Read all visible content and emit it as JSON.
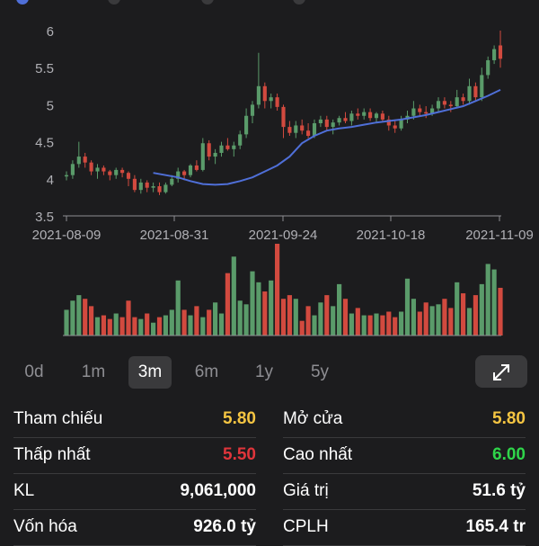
{
  "chart_data": {
    "type": "candlestick",
    "y_ticks": [
      "6",
      "5.5",
      "5",
      "4.5",
      "4",
      "3.5"
    ],
    "ylim": [
      3.5,
      6
    ],
    "x_ticks": [
      "2021-08-09",
      "2021-08-31",
      "2021-09-24",
      "2021-10-18",
      "2021-11-09"
    ],
    "candles": [
      [
        4.05,
        4.1,
        3.98,
        4.05
      ],
      [
        4.05,
        4.25,
        4.0,
        4.2
      ],
      [
        4.2,
        4.5,
        4.15,
        4.3
      ],
      [
        4.3,
        4.35,
        4.15,
        4.22
      ],
      [
        4.22,
        4.25,
        4.05,
        4.1
      ],
      [
        4.1,
        4.2,
        4.0,
        4.15
      ],
      [
        4.15,
        4.18,
        4.05,
        4.1
      ],
      [
        4.1,
        4.12,
        3.98,
        4.05
      ],
      [
        4.05,
        4.15,
        4.0,
        4.12
      ],
      [
        4.12,
        4.15,
        4.02,
        4.08
      ],
      [
        4.08,
        4.1,
        3.9,
        4.0
      ],
      [
        4.0,
        4.05,
        3.82,
        3.85
      ],
      [
        3.85,
        4.0,
        3.8,
        3.95
      ],
      [
        3.95,
        3.98,
        3.82,
        3.88
      ],
      [
        3.88,
        3.95,
        3.82,
        3.9
      ],
      [
        3.9,
        3.95,
        3.78,
        3.82
      ],
      [
        3.82,
        3.95,
        3.8,
        3.92
      ],
      [
        3.92,
        4.05,
        3.9,
        4.0
      ],
      [
        4.0,
        4.15,
        3.95,
        4.1
      ],
      [
        4.1,
        4.12,
        3.98,
        4.05
      ],
      [
        4.05,
        4.2,
        4.02,
        4.18
      ],
      [
        4.18,
        4.25,
        4.1,
        4.12
      ],
      [
        4.12,
        4.55,
        4.1,
        4.48
      ],
      [
        4.48,
        4.52,
        4.25,
        4.3
      ],
      [
        4.3,
        4.4,
        4.2,
        4.35
      ],
      [
        4.35,
        4.5,
        4.3,
        4.45
      ],
      [
        4.45,
        4.55,
        4.38,
        4.4
      ],
      [
        4.4,
        4.5,
        4.3,
        4.45
      ],
      [
        4.45,
        4.65,
        4.4,
        4.6
      ],
      [
        4.6,
        4.95,
        4.55,
        4.85
      ],
      [
        4.85,
        5.05,
        4.75,
        5.0
      ],
      [
        5.0,
        5.7,
        4.95,
        5.25
      ],
      [
        5.25,
        5.3,
        4.95,
        5.05
      ],
      [
        5.05,
        5.15,
        4.95,
        5.1
      ],
      [
        5.1,
        5.15,
        4.92,
        4.97
      ],
      [
        4.97,
        5.0,
        4.55,
        4.7
      ],
      [
        4.7,
        4.78,
        4.58,
        4.62
      ],
      [
        4.62,
        4.78,
        4.55,
        4.72
      ],
      [
        4.72,
        4.8,
        4.6,
        4.65
      ],
      [
        4.65,
        4.75,
        4.55,
        4.58
      ],
      [
        4.58,
        4.8,
        4.55,
        4.75
      ],
      [
        4.75,
        4.85,
        4.7,
        4.8
      ],
      [
        4.8,
        4.85,
        4.65,
        4.7
      ],
      [
        4.7,
        4.8,
        4.6,
        4.76
      ],
      [
        4.76,
        4.85,
        4.72,
        4.82
      ],
      [
        4.82,
        4.9,
        4.75,
        4.78
      ],
      [
        4.78,
        4.92,
        4.72,
        4.88
      ],
      [
        4.88,
        4.95,
        4.8,
        4.85
      ],
      [
        4.85,
        4.95,
        4.8,
        4.9
      ],
      [
        4.9,
        4.95,
        4.78,
        4.82
      ],
      [
        4.82,
        4.9,
        4.75,
        4.88
      ],
      [
        4.88,
        4.92,
        4.78,
        4.8
      ],
      [
        4.8,
        4.85,
        4.65,
        4.72
      ],
      [
        4.72,
        4.8,
        4.62,
        4.68
      ],
      [
        4.68,
        4.85,
        4.65,
        4.8
      ],
      [
        4.8,
        4.92,
        4.75,
        4.85
      ],
      [
        4.85,
        5.05,
        4.8,
        4.95
      ],
      [
        4.95,
        5.0,
        4.85,
        4.9
      ],
      [
        4.9,
        4.98,
        4.82,
        4.88
      ],
      [
        4.88,
        5.0,
        4.85,
        4.95
      ],
      [
        4.95,
        5.1,
        4.9,
        5.05
      ],
      [
        5.05,
        5.1,
        4.95,
        5.0
      ],
      [
        5.0,
        5.05,
        4.9,
        4.98
      ],
      [
        4.98,
        5.2,
        4.95,
        5.1
      ],
      [
        5.1,
        5.15,
        5.0,
        5.05
      ],
      [
        5.05,
        5.35,
        5.0,
        5.25
      ],
      [
        5.25,
        5.3,
        5.05,
        5.1
      ],
      [
        5.1,
        5.5,
        5.05,
        5.4
      ],
      [
        5.4,
        5.65,
        5.35,
        5.6
      ],
      [
        5.6,
        5.8,
        5.55,
        5.75
      ],
      [
        5.8,
        6.0,
        5.5,
        5.62
      ]
    ],
    "ma": [
      [
        14,
        4.08
      ],
      [
        16,
        4.05
      ],
      [
        18,
        4.02
      ],
      [
        20,
        3.97
      ],
      [
        22,
        3.93
      ],
      [
        24,
        3.92
      ],
      [
        26,
        3.93
      ],
      [
        28,
        3.97
      ],
      [
        30,
        4.02
      ],
      [
        32,
        4.1
      ],
      [
        34,
        4.18
      ],
      [
        36,
        4.3
      ],
      [
        38,
        4.48
      ],
      [
        40,
        4.58
      ],
      [
        42,
        4.65
      ],
      [
        44,
        4.68
      ],
      [
        46,
        4.7
      ],
      [
        48,
        4.73
      ],
      [
        50,
        4.76
      ],
      [
        52,
        4.78
      ],
      [
        54,
        4.8
      ],
      [
        56,
        4.83
      ],
      [
        58,
        4.86
      ],
      [
        60,
        4.9
      ],
      [
        62,
        4.94
      ],
      [
        64,
        4.98
      ],
      [
        66,
        5.05
      ],
      [
        68,
        5.12
      ],
      [
        70,
        5.2
      ]
    ],
    "volumes": [
      0.28,
      0.38,
      0.44,
      0.4,
      0.32,
      0.2,
      0.22,
      0.18,
      0.24,
      0.2,
      0.38,
      0.2,
      0.18,
      0.24,
      0.14,
      0.2,
      0.22,
      0.28,
      0.6,
      0.28,
      0.22,
      0.32,
      0.2,
      0.28,
      0.36,
      0.24,
      0.68,
      0.86,
      0.38,
      0.34,
      0.7,
      0.58,
      0.48,
      0.6,
      1.0,
      0.4,
      0.44,
      0.4,
      0.16,
      0.32,
      0.22,
      0.36,
      0.44,
      0.32,
      0.56,
      0.4,
      0.24,
      0.3,
      0.22,
      0.22,
      0.24,
      0.22,
      0.26,
      0.2,
      0.26,
      0.62,
      0.4,
      0.26,
      0.36,
      0.32,
      0.34,
      0.4,
      0.3,
      0.58,
      0.46,
      0.3,
      0.44,
      0.56,
      0.78,
      0.72,
      0.52
    ],
    "colors": {
      "up": "#5a9b6a",
      "down": "#d24a3f",
      "ma": "#4f6fd8",
      "grid": "#48484a",
      "tick": "#b0b0b5"
    }
  },
  "range_tabs": [
    {
      "label": "0d",
      "active": false
    },
    {
      "label": "1m",
      "active": false
    },
    {
      "label": "3m",
      "active": true
    },
    {
      "label": "6m",
      "active": false
    },
    {
      "label": "1y",
      "active": false
    },
    {
      "label": "5y",
      "active": false
    }
  ],
  "stats": {
    "reference_label": "Tham chiếu",
    "reference_value": "5.80",
    "open_label": "Mở cửa",
    "open_value": "5.80",
    "low_label": "Thấp nhất",
    "low_value": "5.50",
    "high_label": "Cao nhất",
    "high_value": "6.00",
    "volume_label": "KL",
    "volume_value": "9,061,000",
    "value_label": "Giá trị",
    "value_value": "51.6 tỷ",
    "market_cap_label": "Vốn hóa",
    "market_cap_value": "926.0 tỷ",
    "shares_label": "CPLH",
    "shares_value": "165.4 tr"
  },
  "icons": {
    "expand": "expand-arrows-icon"
  },
  "colors": {
    "yellow": "#f5c542",
    "red": "#e0353b",
    "green": "#2fd54a"
  }
}
